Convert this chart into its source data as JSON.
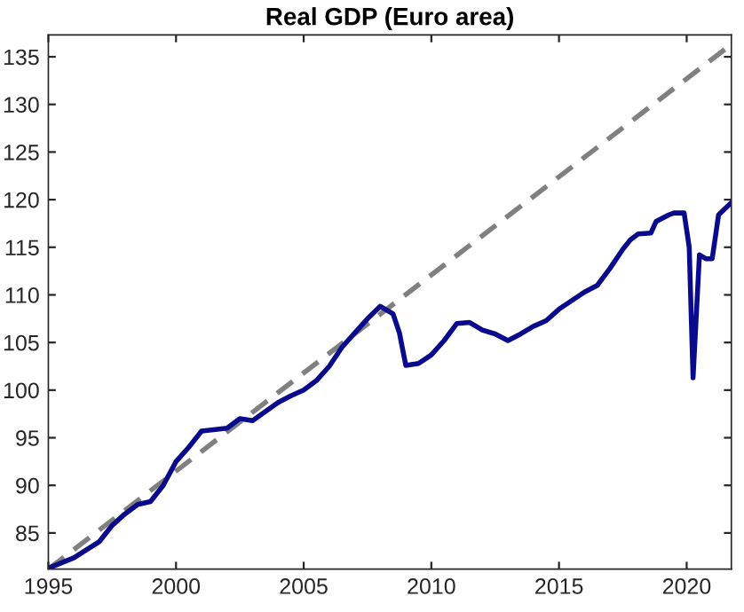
{
  "chart_data": {
    "type": "line",
    "title": "Real GDP (Euro area)",
    "xlim": [
      1995,
      2021.75
    ],
    "xticks": [
      1995,
      2000,
      2005,
      2010,
      2015,
      2020
    ],
    "ylim": [
      81.2,
      137.3
    ],
    "yticks": [
      85,
      90,
      95,
      100,
      105,
      110,
      115,
      120,
      125,
      130,
      135
    ],
    "grid": false,
    "legend": false,
    "series": [
      {
        "color": "#808080",
        "line_style": "dashed",
        "x": [
          1995,
          2021.75
        ],
        "values": [
          81.2,
          136.3
        ]
      },
      {
        "color": "#0a0a8c",
        "line_style": "solid",
        "x": [
          1995,
          1996,
          1997,
          1997.5,
          1998,
          1998.5,
          1999,
          1999.5,
          2000,
          2000.5,
          2001,
          2002,
          2002.5,
          2003,
          2004,
          2004.5,
          2005,
          2005.5,
          2006,
          2006.5,
          2007,
          2007.5,
          2008,
          2008.5,
          2008.75,
          2009,
          2009.5,
          2010,
          2010.5,
          2011,
          2011.5,
          2012,
          2012.5,
          2013,
          2013.5,
          2014,
          2014.5,
          2015,
          2016,
          2016.5,
          2017,
          2017.5,
          2017.8,
          2018.1,
          2018.6,
          2018.8,
          2019.3,
          2019.5,
          2019.9,
          2020.1,
          2020.25,
          2020.5,
          2020.75,
          2021.0,
          2021.25,
          2021.75
        ],
        "values": [
          81.3,
          82.4,
          84.1,
          85.8,
          87.0,
          88.0,
          88.3,
          90.0,
          92.5,
          94.0,
          95.7,
          96.0,
          97.0,
          96.8,
          98.7,
          99.4,
          100.0,
          101.0,
          102.5,
          104.5,
          106.0,
          107.5,
          108.8,
          108.0,
          106.0,
          102.6,
          102.8,
          103.7,
          105.2,
          107.0,
          107.1,
          106.3,
          105.9,
          105.2,
          105.9,
          106.7,
          107.3,
          108.5,
          110.3,
          111.0,
          112.8,
          114.8,
          115.8,
          116.4,
          116.5,
          117.7,
          118.4,
          118.6,
          118.6,
          115.0,
          101.3,
          114.2,
          113.8,
          113.8,
          118.4,
          119.7
        ]
      }
    ]
  }
}
